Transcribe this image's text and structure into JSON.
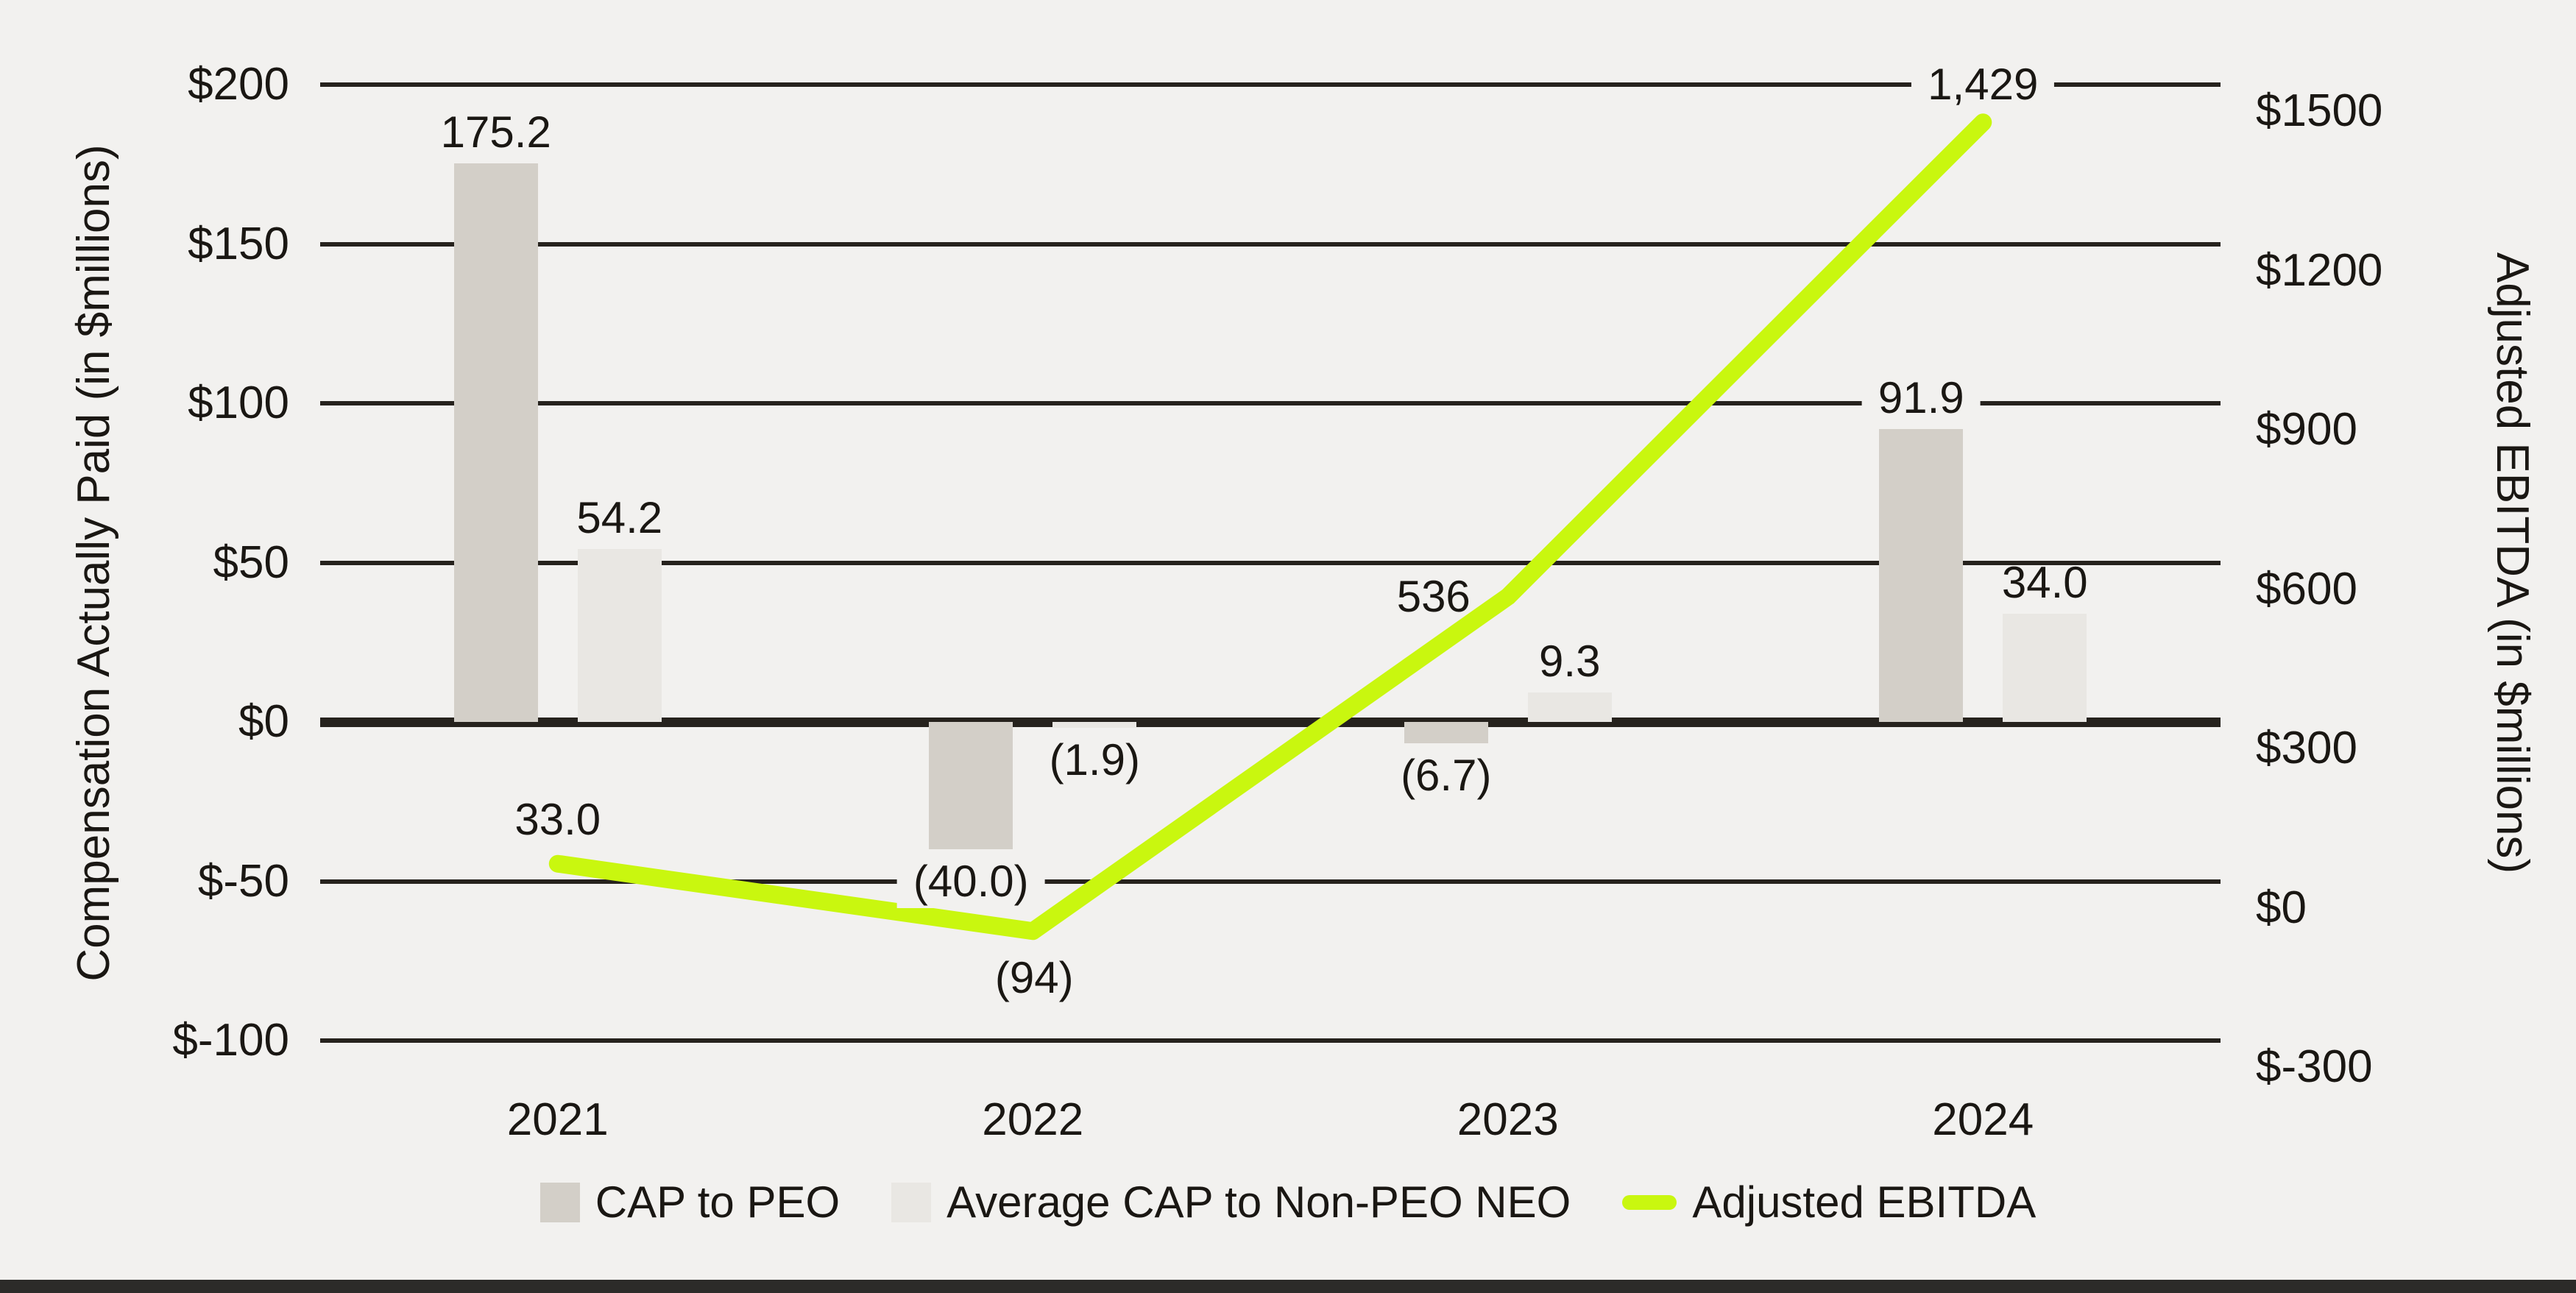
{
  "background": "#f2f1ef",
  "text_color": "#1a1713",
  "grid_color": "#26221d",
  "bottom_bar_color": "#2c2b29",
  "chart_data": {
    "type": "combo-bar-line",
    "categories": [
      "2021",
      "2022",
      "2023",
      "2024"
    ],
    "series": [
      {
        "name": "CAP to PEO",
        "chart_type": "bar",
        "axis": "left",
        "color": "#d3cfc8",
        "values": [
          175.2,
          -40.0,
          -6.7,
          91.9
        ],
        "value_labels": [
          "175.2",
          "(40.0)",
          "(6.7)",
          "91.9"
        ]
      },
      {
        "name": "Average CAP to Non-PEO NEO",
        "chart_type": "bar",
        "axis": "left",
        "color": "#e9e7e3",
        "values": [
          54.2,
          -1.9,
          9.3,
          34.0
        ],
        "value_labels": [
          "54.2",
          "(1.9)",
          "9.3",
          "34.0"
        ]
      },
      {
        "name": "Adjusted EBITDA",
        "chart_type": "line",
        "axis": "right",
        "color": "#c9f70f",
        "values": [
          33.0,
          -94,
          536,
          1429
        ],
        "value_labels": [
          "33.0",
          "(94)",
          "536",
          "1,429"
        ]
      }
    ],
    "left_axis": {
      "title": "Compensation Actually Paid (in $millions)",
      "tick_labels": [
        "$200",
        "$150",
        "$100",
        "$50",
        "$0",
        "$-50",
        "$-100"
      ],
      "max": 200,
      "min": -100,
      "step": 50
    },
    "right_axis": {
      "title": "Adjusted EBITDA (in $millions)",
      "tick_labels": [
        "$1500",
        "$1200",
        "$900",
        "$600",
        "$300",
        "$0",
        "$-300"
      ],
      "max": 1500,
      "min": -300,
      "step": 300
    },
    "grid": true,
    "legend_position": "bottom"
  }
}
